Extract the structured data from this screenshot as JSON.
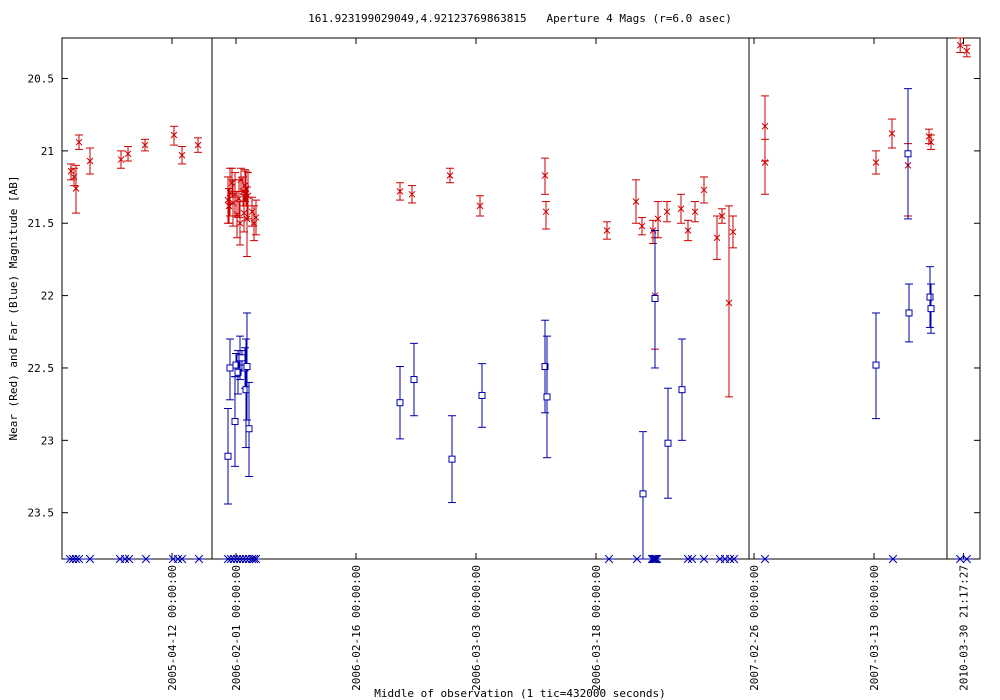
{
  "chart_data": {
    "type": "scatter",
    "title": "161.923199029049,4.92123769863815   Aperture 4 Mags (r=6.0 asec)",
    "xlabel": "Middle of observation (1 tic=432000 seconds)",
    "ylabel": "Near (Red) and Far (Blue) Magnitude [AB]",
    "y_reversed": true,
    "ylim": [
      20.22,
      23.82
    ],
    "yticks": [
      20.5,
      21,
      21.5,
      22,
      22.5,
      23,
      23.5
    ],
    "grid": false,
    "colors": {
      "near": "#cc0000",
      "far": "#0000aa",
      "frame": "#000000"
    },
    "panels": [
      {
        "xlim": [
          0,
          150
        ],
        "xticks": [
          {
            "x": 110,
            "label": "2005-04-12 00:00:00"
          }
        ]
      },
      {
        "xlim": [
          0,
          537
        ],
        "xticks": [
          {
            "x": 24,
            "label": "2006-02-01 00:00:00"
          },
          {
            "x": 144,
            "label": "2006-02-16 00:00:00"
          },
          {
            "x": 264,
            "label": "2006-03-03 00:00:00"
          },
          {
            "x": 384,
            "label": "2006-03-18 00:00:00"
          }
        ]
      },
      {
        "xlim": [
          0,
          198
        ],
        "xticks": [
          {
            "x": 5,
            "label": "2007-02-26 00:00:00"
          },
          {
            "x": 125,
            "label": "2007-03-13 00:00:00"
          }
        ]
      },
      {
        "xlim": [
          0,
          40
        ],
        "xticks": [
          {
            "x": 20,
            "label": "2010-03-30 21:17:27"
          }
        ]
      }
    ],
    "series": [
      {
        "name": "Near (Red)",
        "marker": "x",
        "points": [
          [
            0,
            9,
            21.14,
            21.09,
            21.2
          ],
          [
            0,
            12,
            21.18,
            21.12,
            21.24
          ],
          [
            0,
            14,
            21.26,
            21.1,
            21.43
          ],
          [
            0,
            17,
            20.94,
            20.89,
            20.99
          ],
          [
            0,
            28,
            21.07,
            20.98,
            21.16
          ],
          [
            0,
            59,
            21.06,
            21.0,
            21.12
          ],
          [
            0,
            66,
            21.02,
            20.97,
            21.07
          ],
          [
            0,
            83,
            20.96,
            20.92,
            21.0
          ],
          [
            0,
            112,
            20.89,
            20.83,
            20.96
          ],
          [
            0,
            120,
            21.03,
            20.97,
            21.09
          ],
          [
            0,
            136,
            20.96,
            20.91,
            21.01
          ],
          [
            1,
            16,
            21.34,
            21.18,
            21.5
          ],
          [
            1,
            17,
            21.38,
            21.26,
            21.5
          ],
          [
            1,
            18,
            21.29,
            21.12,
            21.45
          ],
          [
            1,
            20,
            21.22,
            21.12,
            21.32
          ],
          [
            1,
            21,
            21.36,
            21.2,
            21.52
          ],
          [
            1,
            23,
            21.3,
            21.15,
            21.45
          ],
          [
            1,
            25,
            21.44,
            21.28,
            21.6
          ],
          [
            1,
            27,
            21.33,
            21.2,
            21.46
          ],
          [
            1,
            28,
            21.5,
            21.35,
            21.65
          ],
          [
            1,
            29,
            21.2,
            21.12,
            21.28
          ],
          [
            1,
            31,
            21.28,
            21.18,
            21.38
          ],
          [
            1,
            32,
            21.43,
            21.3,
            21.56
          ],
          [
            1,
            33,
            21.24,
            21.13,
            21.35
          ],
          [
            1,
            34,
            21.26,
            21.14,
            21.38
          ],
          [
            1,
            35,
            21.47,
            21.25,
            21.73
          ],
          [
            1,
            36,
            21.31,
            21.15,
            21.47
          ],
          [
            1,
            40,
            21.42,
            21.32,
            21.52
          ],
          [
            1,
            42,
            21.5,
            21.38,
            21.62
          ],
          [
            1,
            44,
            21.46,
            21.34,
            21.58
          ],
          [
            1,
            188,
            21.28,
            21.22,
            21.34
          ],
          [
            1,
            200,
            21.3,
            21.24,
            21.36
          ],
          [
            1,
            238,
            21.17,
            21.12,
            21.22
          ],
          [
            1,
            268,
            21.38,
            21.31,
            21.45
          ],
          [
            1,
            333,
            21.17,
            21.05,
            21.3
          ],
          [
            1,
            334,
            21.42,
            21.35,
            21.54
          ],
          [
            1,
            395,
            21.55,
            21.49,
            21.61
          ],
          [
            1,
            424,
            21.35,
            21.2,
            21.5
          ],
          [
            1,
            430,
            21.52,
            21.46,
            21.58
          ],
          [
            1,
            441,
            21.55,
            21.48,
            21.64
          ],
          [
            1,
            443,
            22.0,
            21.6,
            22.37
          ],
          [
            1,
            446,
            21.47,
            21.35,
            21.6
          ],
          [
            1,
            455,
            21.42,
            21.35,
            21.49
          ],
          [
            1,
            469,
            21.4,
            21.3,
            21.5
          ],
          [
            1,
            476,
            21.55,
            21.48,
            21.62
          ],
          [
            1,
            483,
            21.42,
            21.35,
            21.49
          ],
          [
            1,
            492,
            21.27,
            21.18,
            21.36
          ],
          [
            1,
            505,
            21.6,
            21.45,
            21.75
          ],
          [
            1,
            510,
            21.45,
            21.4,
            21.5
          ],
          [
            1,
            517,
            22.05,
            21.38,
            22.7
          ],
          [
            1,
            521,
            21.56,
            21.45,
            21.67
          ],
          [
            2,
            16,
            20.83,
            20.62,
            21.07
          ],
          [
            2,
            16,
            21.08,
            20.92,
            21.3
          ],
          [
            2,
            127,
            21.08,
            21.0,
            21.16
          ],
          [
            2,
            143,
            20.88,
            20.78,
            20.98
          ],
          [
            2,
            159,
            21.1,
            20.95,
            21.45
          ],
          [
            2,
            180,
            20.9,
            20.85,
            20.95
          ],
          [
            2,
            182,
            20.94,
            20.89,
            20.99
          ],
          [
            3,
            16,
            20.27,
            20.22,
            20.32
          ],
          [
            3,
            24,
            20.31,
            20.27,
            20.35
          ]
        ]
      },
      {
        "name": "Far (Blue)",
        "marker": "square",
        "points": [
          [
            1,
            16,
            23.11,
            22.78,
            23.44
          ],
          [
            1,
            18,
            22.5,
            22.3,
            22.72
          ],
          [
            1,
            23,
            22.87,
            22.56,
            23.18
          ],
          [
            1,
            24,
            22.48,
            22.4,
            22.56
          ],
          [
            1,
            26,
            22.53,
            22.38,
            22.68
          ],
          [
            1,
            28,
            22.43,
            22.28,
            22.58
          ],
          [
            1,
            30,
            22.43,
            22.38,
            22.48
          ],
          [
            1,
            33,
            22.5,
            22.36,
            22.64
          ],
          [
            1,
            34,
            22.65,
            22.3,
            23.05
          ],
          [
            1,
            35,
            22.49,
            22.12,
            22.86
          ],
          [
            1,
            37,
            22.92,
            22.6,
            23.25
          ],
          [
            1,
            188,
            22.74,
            22.49,
            22.99
          ],
          [
            1,
            202,
            22.58,
            22.33,
            22.83
          ],
          [
            1,
            240,
            23.13,
            22.83,
            23.43
          ],
          [
            1,
            270,
            22.69,
            22.47,
            22.91
          ],
          [
            1,
            333,
            22.49,
            22.17,
            22.81
          ],
          [
            1,
            335,
            22.7,
            22.28,
            23.12
          ],
          [
            1,
            431,
            23.37,
            22.94,
            23.82
          ],
          [
            1,
            443,
            22.02,
            21.55,
            22.5
          ],
          [
            1,
            456,
            23.02,
            22.64,
            23.4
          ],
          [
            1,
            470,
            22.65,
            22.3,
            23.0
          ],
          [
            2,
            127,
            22.48,
            22.12,
            22.85
          ],
          [
            2,
            159,
            21.02,
            20.57,
            21.47
          ],
          [
            2,
            160,
            22.12,
            21.92,
            22.32
          ],
          [
            2,
            181,
            22.01,
            21.8,
            22.22
          ],
          [
            2,
            182,
            22.09,
            21.92,
            22.26
          ]
        ]
      }
    ],
    "observation_markers": [
      [
        0,
        8
      ],
      [
        0,
        11
      ],
      [
        0,
        14
      ],
      [
        0,
        17
      ],
      [
        0,
        28
      ],
      [
        0,
        58
      ],
      [
        0,
        63
      ],
      [
        0,
        67
      ],
      [
        0,
        84
      ],
      [
        0,
        111
      ],
      [
        0,
        116
      ],
      [
        0,
        120
      ],
      [
        0,
        137
      ],
      [
        1,
        16
      ],
      [
        1,
        19
      ],
      [
        1,
        22
      ],
      [
        1,
        25
      ],
      [
        1,
        28
      ],
      [
        1,
        31
      ],
      [
        1,
        34
      ],
      [
        1,
        37
      ],
      [
        1,
        40
      ],
      [
        1,
        42
      ],
      [
        1,
        44
      ],
      [
        1,
        397
      ],
      [
        1,
        425
      ],
      [
        1,
        440
      ],
      [
        1,
        441
      ],
      [
        1,
        442
      ],
      [
        1,
        443
      ],
      [
        1,
        444
      ],
      [
        1,
        445
      ],
      [
        1,
        476
      ],
      [
        1,
        480
      ],
      [
        1,
        492
      ],
      [
        1,
        508
      ],
      [
        1,
        513
      ],
      [
        1,
        518
      ],
      [
        1,
        522
      ],
      [
        2,
        16
      ],
      [
        2,
        144
      ],
      [
        3,
        16
      ],
      [
        3,
        24
      ]
    ]
  }
}
